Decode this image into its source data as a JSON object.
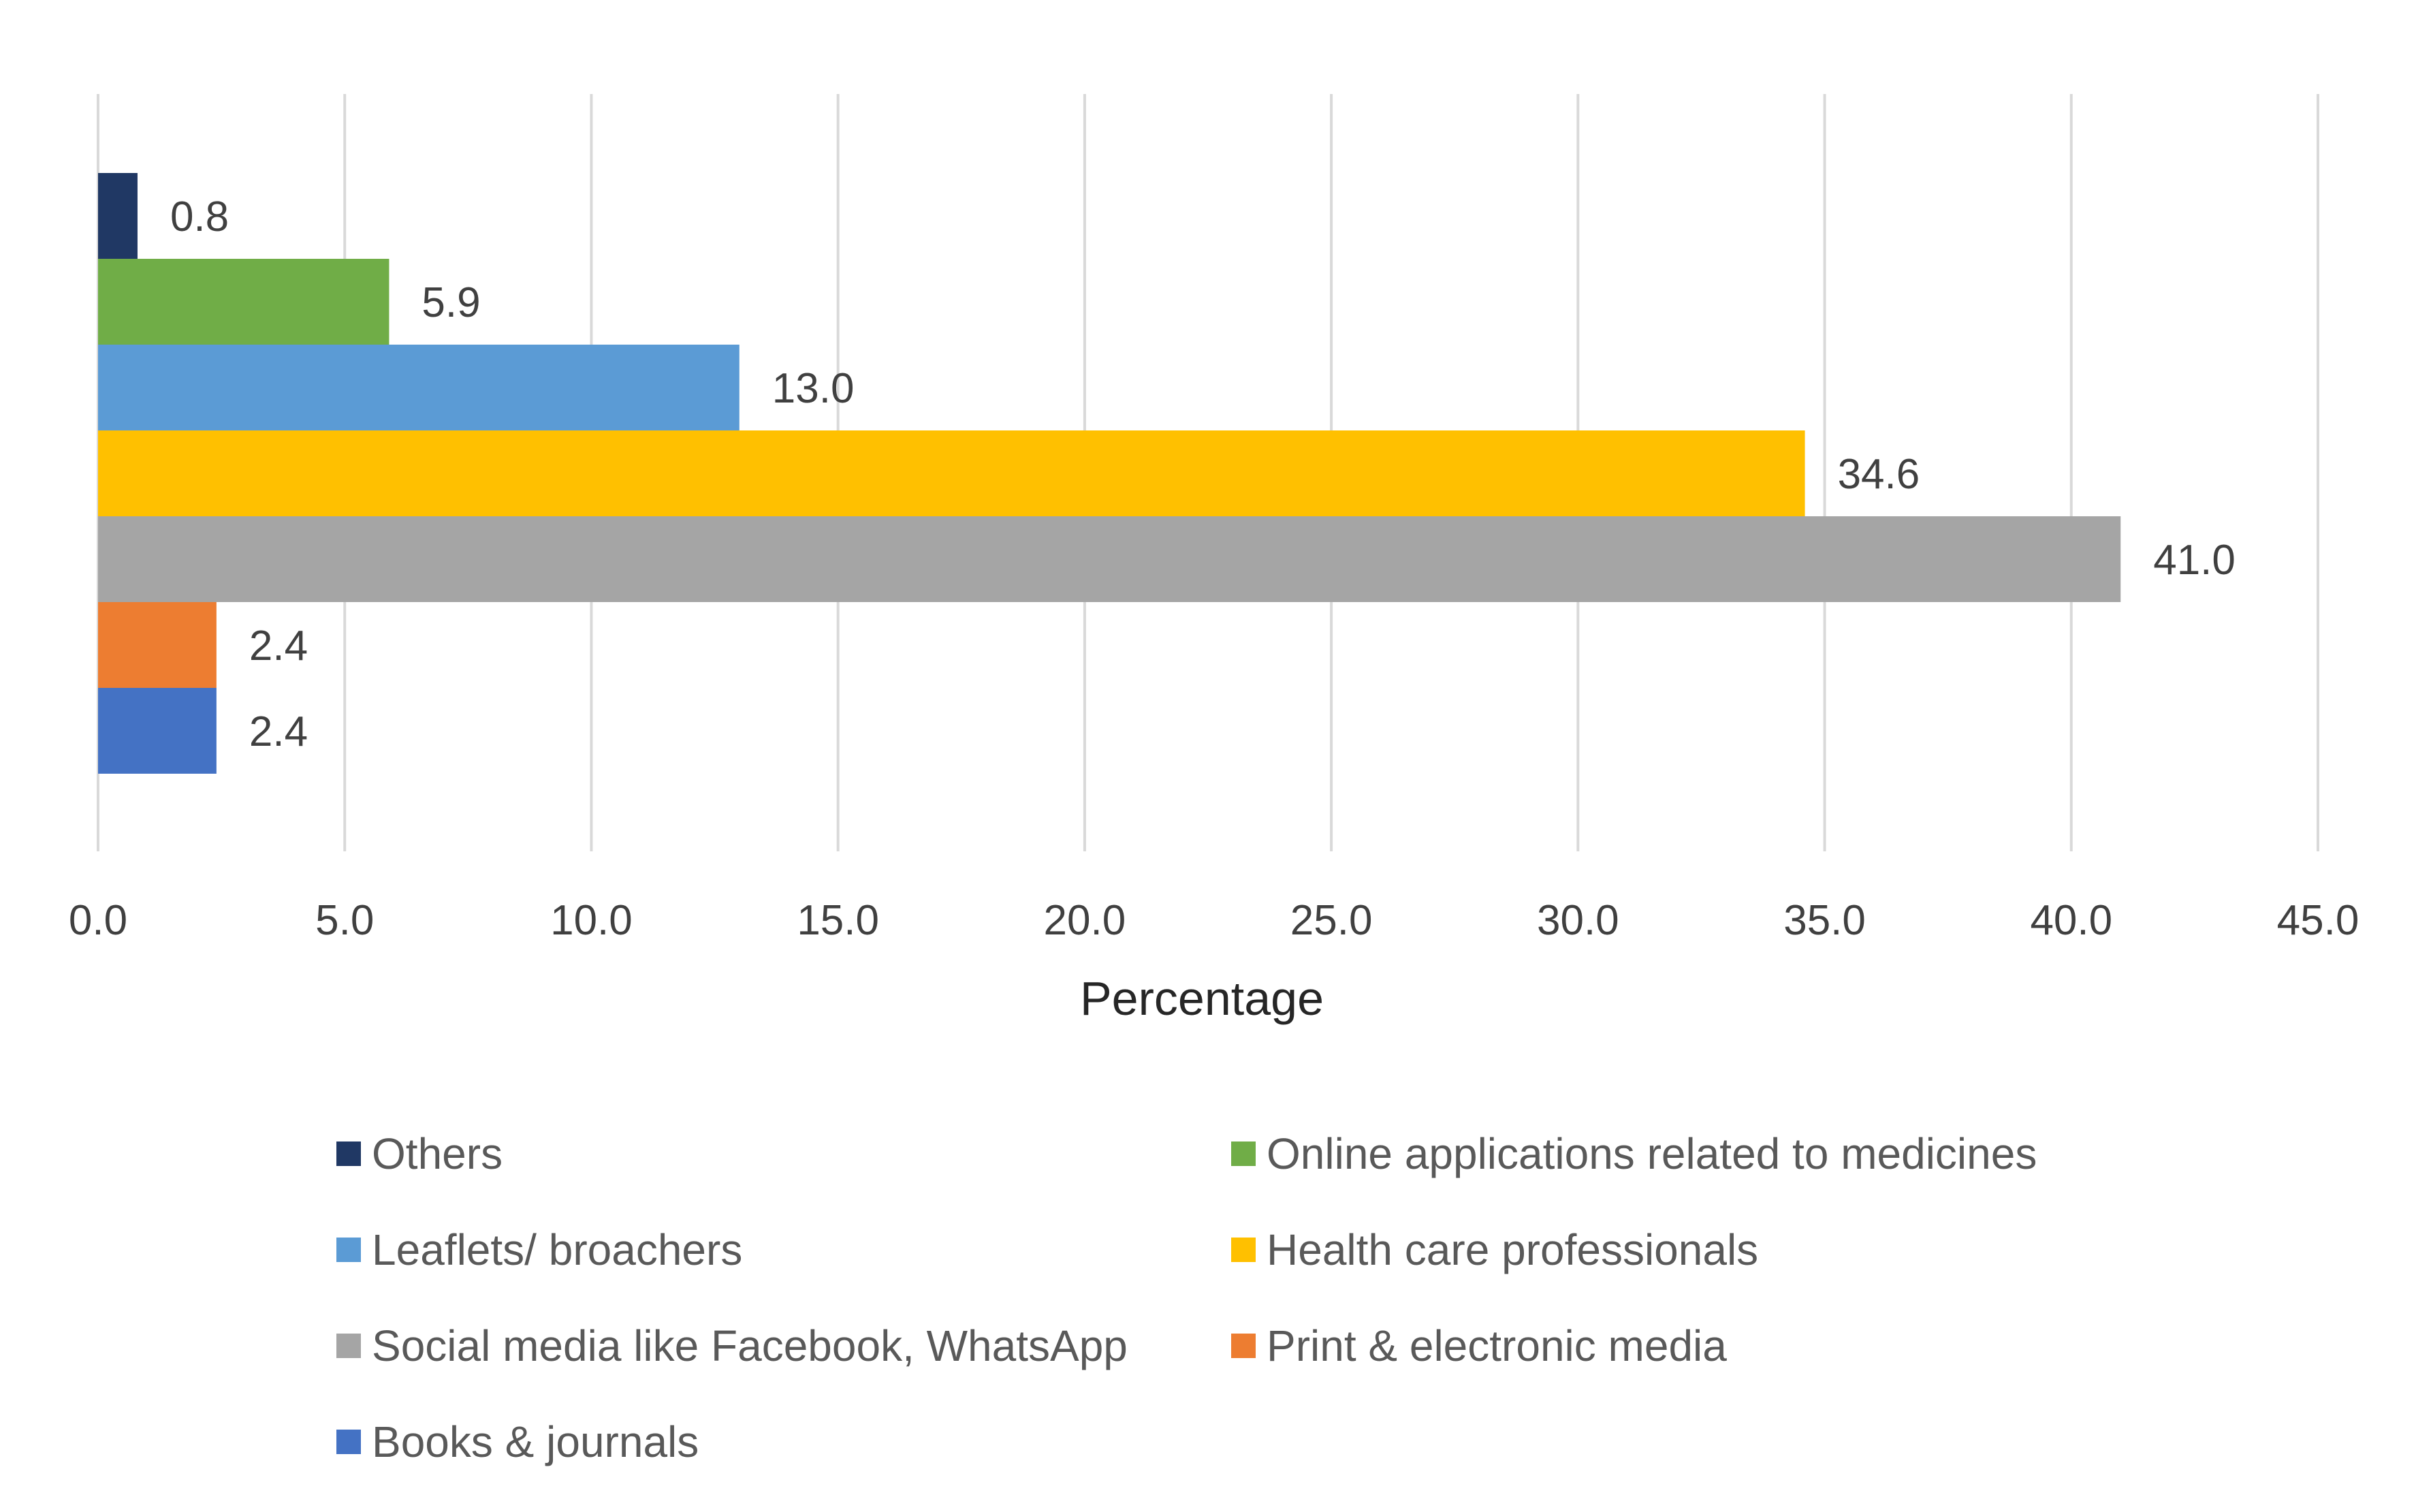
{
  "chart_data": {
    "type": "bar",
    "orientation": "horizontal",
    "title": "",
    "xlabel": "Percentage",
    "ylabel": "",
    "xlim": [
      0,
      45
    ],
    "x_ticks": [
      "0.0",
      "5.0",
      "10.0",
      "15.0",
      "20.0",
      "25.0",
      "30.0",
      "35.0",
      "40.0",
      "45.0"
    ],
    "grid": "vertical",
    "legend_position": "bottom",
    "series": [
      {
        "name": "Others",
        "value": 0.8,
        "label": "0.8",
        "color": "#203864"
      },
      {
        "name": "Online applications related to medicines",
        "value": 5.9,
        "label": "5.9",
        "color": "#70AD47"
      },
      {
        "name": "Leaflets/ broachers",
        "value": 13.0,
        "label": "13.0",
        "color": "#5B9BD5"
      },
      {
        "name": "Health care professionals",
        "value": 34.6,
        "label": "34.6",
        "color": "#FFC000"
      },
      {
        "name": "Social media like Facebook, WhatsApp",
        "value": 41.0,
        "label": "41.0",
        "color": "#A5A5A5"
      },
      {
        "name": "Print & electronic media",
        "value": 2.4,
        "label": "2.4",
        "color": "#ED7D31"
      },
      {
        "name": "Books & journals",
        "value": 2.4,
        "label": "2.4",
        "color": "#4472C4"
      }
    ]
  }
}
